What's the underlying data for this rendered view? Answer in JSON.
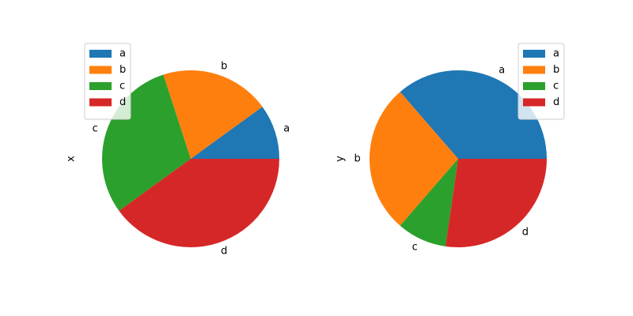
{
  "chart_data": [
    {
      "type": "pie",
      "ylabel": "x",
      "categories": [
        "a",
        "b",
        "c",
        "d"
      ],
      "values": [
        1,
        2,
        3,
        4
      ],
      "colors": [
        "#1f77b4",
        "#ff7f0e",
        "#2ca02c",
        "#d62728"
      ],
      "legend": {
        "entries": [
          "a",
          "b",
          "c",
          "d"
        ],
        "position": "upper-left"
      }
    },
    {
      "type": "pie",
      "ylabel": "y",
      "categories": [
        "a",
        "b",
        "c",
        "d"
      ],
      "values": [
        4,
        3,
        1,
        3
      ],
      "colors": [
        "#1f77b4",
        "#ff7f0e",
        "#2ca02c",
        "#d62728"
      ],
      "legend": {
        "entries": [
          "a",
          "b",
          "c",
          "d"
        ],
        "position": "upper-right"
      }
    }
  ]
}
